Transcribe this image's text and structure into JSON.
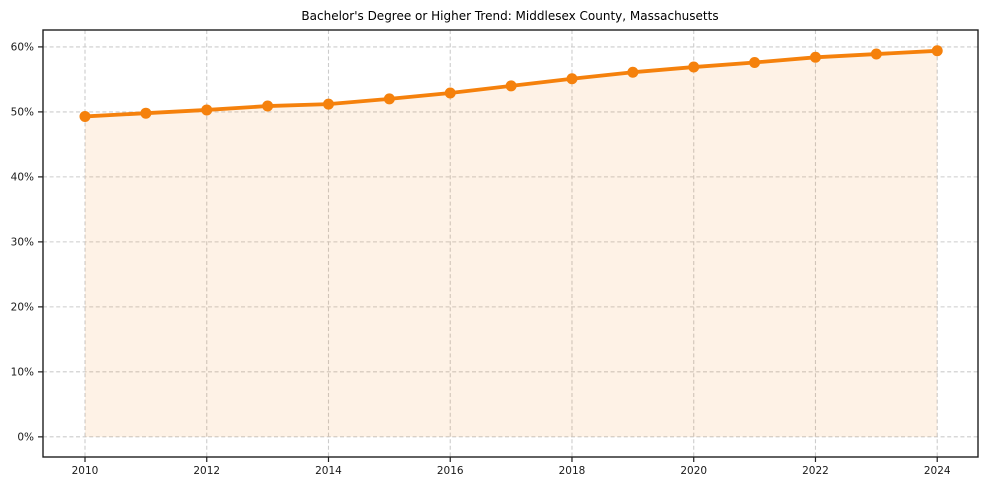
{
  "chart_data": {
    "type": "line",
    "title": "Bachelor's Degree or Higher Trend: Middlesex County, Massachusetts",
    "x": [
      2010,
      2011,
      2012,
      2013,
      2014,
      2015,
      2016,
      2017,
      2018,
      2019,
      2020,
      2021,
      2022,
      2023,
      2024
    ],
    "values": [
      49.3,
      49.8,
      50.3,
      50.9,
      51.2,
      52.0,
      52.9,
      54.0,
      55.1,
      56.1,
      56.9,
      57.6,
      58.4,
      58.9,
      59.4
    ],
    "unit": "%",
    "xlabel": "",
    "ylabel": "",
    "xlim": [
      2009.31,
      2024.67
    ],
    "ylim": [
      -3.1,
      62.6
    ],
    "xticks": [
      {
        "value": 2010,
        "label": "2010"
      },
      {
        "value": 2012,
        "label": "2012"
      },
      {
        "value": 2014,
        "label": "2014"
      },
      {
        "value": 2016,
        "label": "2016"
      },
      {
        "value": 2018,
        "label": "2018"
      },
      {
        "value": 2020,
        "label": "2020"
      },
      {
        "value": 2022,
        "label": "2022"
      },
      {
        "value": 2024,
        "label": "2024"
      }
    ],
    "yticks": [
      {
        "value": 0,
        "label": "0%"
      },
      {
        "value": 10,
        "label": "10%"
      },
      {
        "value": 20,
        "label": "20%"
      },
      {
        "value": 30,
        "label": "30%"
      },
      {
        "value": 40,
        "label": "40%"
      },
      {
        "value": 50,
        "label": "50%"
      },
      {
        "value": 60,
        "label": "60%"
      }
    ],
    "grid": true,
    "grid_style": "dashed",
    "legend": false,
    "area_fill": true,
    "fill_baseline": 0,
    "marker": "circle",
    "colors": {
      "line": "#F5810C",
      "marker": "#F5810C",
      "fill": "#F5810C",
      "fill_opacity": "0.10",
      "grid": "#CCCCCC",
      "spine": "#1F1F1F",
      "tick": "#1F1F1F",
      "background": "#FFFFFF"
    }
  }
}
